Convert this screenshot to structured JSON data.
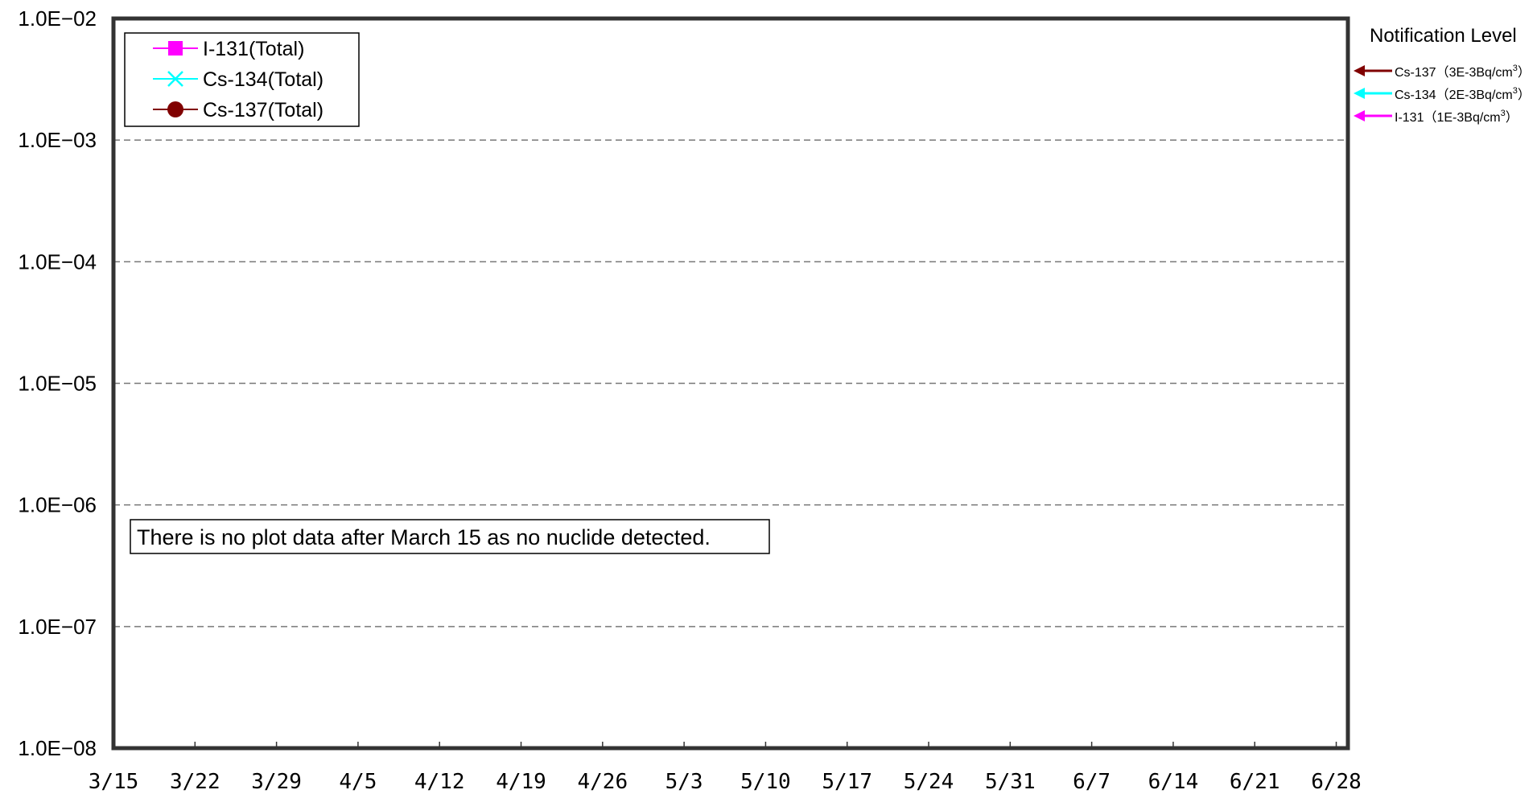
{
  "chart_data": {
    "type": "line",
    "title": "",
    "xlabel": "",
    "ylabel": "",
    "y_scale": "log",
    "ylim": [
      1e-08,
      0.01
    ],
    "y_ticks": [
      1e-08,
      1e-07,
      1e-06,
      1e-05,
      0.0001,
      0.001,
      0.01
    ],
    "y_tick_labels": [
      "1.0E−08",
      "1.0E−07",
      "1.0E−06",
      "1.0E−05",
      "1.0E−04",
      "1.0E−03",
      "1.0E−02"
    ],
    "x_tick_labels": [
      "3/15",
      "3/22",
      "3/29",
      "4/5",
      "4/12",
      "4/19",
      "4/26",
      "5/3",
      "5/10",
      "5/17",
      "5/24",
      "5/31",
      "6/7",
      "6/14",
      "6/21",
      "6/28"
    ],
    "xlim": [
      "3/15",
      "6/29"
    ],
    "grid": "horizontal dashed",
    "legend_position": "top-left",
    "series": [
      {
        "name": "I-131(Total)",
        "color": "#FF00FF",
        "marker": "square",
        "values": []
      },
      {
        "name": "Cs-134(Total)",
        "color": "#00FFFF",
        "marker": "x",
        "values": []
      },
      {
        "name": "Cs-137(Total)",
        "color": "#800000",
        "marker": "circle",
        "values": []
      }
    ],
    "annotation": "There is no plot data after March 15 as no nuclide detected.",
    "notification_level": {
      "title": "Notification Level",
      "items": [
        {
          "nuclide": "Cs-137",
          "level": "（3E-3Bq/cm",
          "sup": "3",
          "close": "）",
          "color": "#800000"
        },
        {
          "nuclide": "Cs-134",
          "level": "（2E-3Bq/cm",
          "sup": "3",
          "close": "）",
          "color": "#00FFFF"
        },
        {
          "nuclide": "I-131",
          "level": "（1E-3Bq/cm",
          "sup": "3",
          "close": "）",
          "color": "#FF00FF"
        }
      ]
    }
  }
}
